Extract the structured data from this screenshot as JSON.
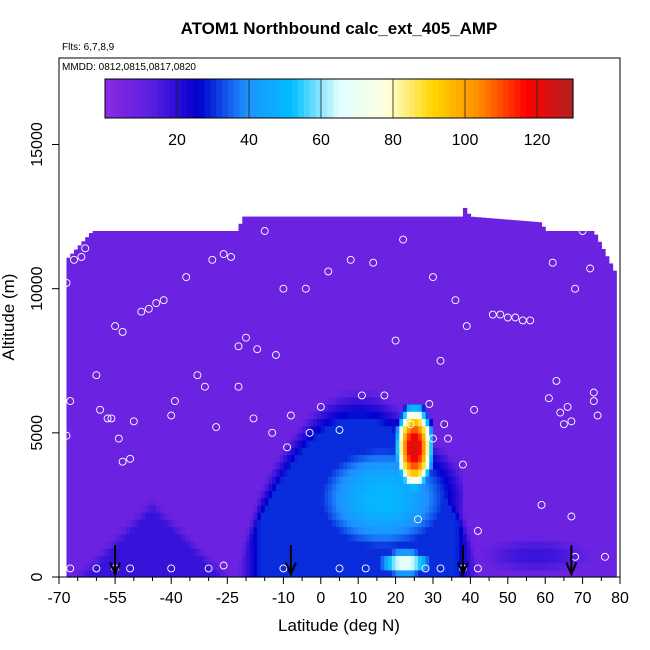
{
  "chart_data": {
    "type": "heatmap",
    "title": "ATOM1 Northbound calc_ext_405_AMP",
    "flights_label": "Flts: 6,7,8,9",
    "dates_label": "MMDD: 0812,0815,0817,0820",
    "xlabel": "Latitude (deg N)",
    "ylabel": "Altitude (m)",
    "xlim": [
      -70,
      80
    ],
    "ylim": [
      0,
      18000
    ],
    "x_ticks": [
      -70,
      -55,
      -40,
      -25,
      -10,
      0,
      10,
      20,
      30,
      40,
      50,
      60,
      70,
      80
    ],
    "x_tick_labels": [
      "-70",
      "-55",
      "-40",
      "-25",
      "-10",
      "0",
      "10",
      "20",
      "30",
      "40",
      "50",
      "60",
      "70",
      "80"
    ],
    "x_minor_ticks": [
      -65,
      -60,
      -50,
      -45,
      -35,
      -30,
      -20,
      -15,
      -5,
      5,
      15,
      25,
      35,
      45,
      55,
      65,
      75
    ],
    "y_ticks": [
      0,
      5000,
      10000,
      15000
    ],
    "y_tick_labels": [
      "0",
      "5000",
      "10000",
      "15000"
    ],
    "colorbar": {
      "min": 0,
      "max": 130,
      "ticks": [
        20,
        40,
        60,
        80,
        100,
        120
      ],
      "tick_labels": [
        "20",
        "40",
        "60",
        "80",
        "100",
        "120"
      ],
      "colors": [
        "#8a2be2",
        "#5a1ee0",
        "#0000cd",
        "#1e90ff",
        "#00bfff",
        "#e0ffff",
        "#ffffe0",
        "#ffd700",
        "#ff8c00",
        "#ff0000",
        "#b22222"
      ]
    },
    "background_value": 8,
    "field_extent": {
      "lat_range": [
        -68,
        79
      ],
      "top_altitude_by_lat": [
        [
          -68,
          11000
        ],
        [
          -61,
          12000
        ],
        [
          -22,
          12000
        ],
        [
          -21,
          12500
        ],
        [
          21,
          12500
        ],
        [
          38,
          12500
        ],
        [
          38.5,
          12800
        ],
        [
          40,
          12500
        ],
        [
          59,
          12300
        ],
        [
          60,
          12000
        ],
        [
          73,
          12000
        ],
        [
          79,
          10500
        ]
      ]
    },
    "features": [
      {
        "name": "blue dome",
        "lat_range": [
          -25,
          45
        ],
        "alt_range": [
          0,
          7000
        ],
        "peak_value": 30
      },
      {
        "name": "light-blue core",
        "lat_range": [
          -5,
          38
        ],
        "alt_range": [
          500,
          5000
        ],
        "peak_value": 50
      },
      {
        "name": "surface high",
        "lat_range": [
          15,
          30
        ],
        "alt_range": [
          0,
          1000
        ],
        "peak_value": 70
      },
      {
        "name": "plume",
        "lat_range": [
          20,
          30
        ],
        "alt_range": [
          3000,
          6000
        ],
        "peak_value": 125
      },
      {
        "name": "southern low band",
        "lat_range": [
          -68,
          -22
        ],
        "alt_range": [
          0,
          3000
        ],
        "peak_value": 18
      },
      {
        "name": "northern low band",
        "lat_range": [
          40,
          75
        ],
        "alt_range": [
          0,
          1500
        ],
        "peak_value": 18
      }
    ],
    "sample_points": [
      [
        -68,
        10200
      ],
      [
        -67,
        6100
      ],
      [
        -68,
        4900
      ],
      [
        -66,
        11000
      ],
      [
        -64,
        11100
      ],
      [
        -63,
        11400
      ],
      [
        -60,
        7000
      ],
      [
        -59,
        5800
      ],
      [
        -57,
        5500
      ],
      [
        -56,
        5500
      ],
      [
        -55,
        8700
      ],
      [
        -54,
        4800
      ],
      [
        -53,
        4000
      ],
      [
        -51,
        4100
      ],
      [
        -53,
        8500
      ],
      [
        -50,
        5400
      ],
      [
        -48,
        9200
      ],
      [
        -46,
        9300
      ],
      [
        -44,
        9500
      ],
      [
        -42,
        9600
      ],
      [
        -40,
        5600
      ],
      [
        -39,
        6100
      ],
      [
        -36,
        10400
      ],
      [
        -33,
        7000
      ],
      [
        -31,
        6600
      ],
      [
        -29,
        11000
      ],
      [
        -28,
        5200
      ],
      [
        -26,
        11200
      ],
      [
        -24,
        11100
      ],
      [
        -22,
        6600
      ],
      [
        -22,
        8000
      ],
      [
        -20,
        8300
      ],
      [
        -18,
        5500
      ],
      [
        -17,
        7900
      ],
      [
        -15,
        12000
      ],
      [
        -13,
        5000
      ],
      [
        -12,
        7700
      ],
      [
        -10,
        10000
      ],
      [
        -9,
        4500
      ],
      [
        -8,
        5600
      ],
      [
        -4,
        10000
      ],
      [
        -3,
        5000
      ],
      [
        0,
        5900
      ],
      [
        2,
        10600
      ],
      [
        5,
        5100
      ],
      [
        8,
        11000
      ],
      [
        11,
        6300
      ],
      [
        14,
        10900
      ],
      [
        17,
        6300
      ],
      [
        20,
        8200
      ],
      [
        22,
        11700
      ],
      [
        24,
        5300
      ],
      [
        26,
        2000
      ],
      [
        29,
        6000
      ],
      [
        30,
        4800
      ],
      [
        30,
        10400
      ],
      [
        32,
        7500
      ],
      [
        33,
        5300
      ],
      [
        34,
        4800
      ],
      [
        36,
        9600
      ],
      [
        38,
        3900
      ],
      [
        39,
        8700
      ],
      [
        41,
        5800
      ],
      [
        42,
        1600
      ],
      [
        46,
        9100
      ],
      [
        48,
        9100
      ],
      [
        50,
        9000
      ],
      [
        52,
        9000
      ],
      [
        54,
        8900
      ],
      [
        56,
        8900
      ],
      [
        59,
        2500
      ],
      [
        61,
        6200
      ],
      [
        62,
        10900
      ],
      [
        63,
        6800
      ],
      [
        64,
        5700
      ],
      [
        65,
        5300
      ],
      [
        66,
        5900
      ],
      [
        67,
        5400
      ],
      [
        67,
        2100
      ],
      [
        68,
        10000
      ],
      [
        68,
        700
      ],
      [
        70,
        12000
      ],
      [
        72,
        10700
      ],
      [
        73,
        6400
      ],
      [
        73,
        6100
      ],
      [
        74,
        5600
      ],
      [
        76,
        700
      ],
      [
        -60,
        300
      ],
      [
        -55,
        300
      ],
      [
        -51,
        300
      ],
      [
        -40,
        300
      ],
      [
        -30,
        300
      ],
      [
        -26,
        400
      ],
      [
        -10,
        300
      ],
      [
        5,
        300
      ],
      [
        12,
        300
      ],
      [
        28,
        300
      ],
      [
        32,
        300
      ],
      [
        38,
        300
      ],
      [
        42,
        300
      ],
      [
        -67,
        300
      ]
    ],
    "flight_markers_lat": [
      -55,
      -8,
      38,
      67
    ]
  }
}
